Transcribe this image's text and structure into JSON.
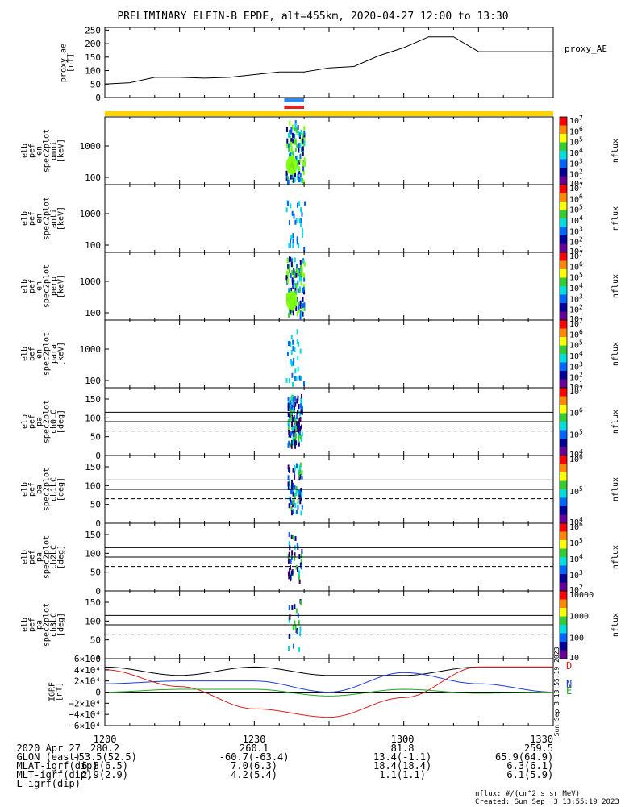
{
  "title": "PRELIMINARY ELFIN-B EPDE, alt=455km, 2020-04-27 12:00 to 13:30",
  "colors": {
    "ae_line": "#000000",
    "bar_blue": "#2f86e6",
    "bar_red": "#e8201e",
    "bar_yellow": "#ffd400",
    "igrf_black": "#000000",
    "igrf_blue": "#1f3cd6",
    "igrf_red": "#d82020",
    "igrf_green": "#1ea81e"
  },
  "ae_panel": {
    "ylabel": "proxy_ae\n[nT]",
    "yticks": [
      "250",
      "200",
      "150",
      "100",
      "50",
      "0"
    ],
    "legend": "proxy_AE"
  },
  "spec_panels": [
    {
      "ylabel": [
        "elb",
        "pef",
        "en",
        "spec2plot",
        "omni",
        "[keV]"
      ],
      "yticks": [
        "1000",
        "100"
      ],
      "cbar_ticks": [
        "10^7",
        "10^6",
        "10^5",
        "10^4",
        "10^3",
        "10^2",
        "10^1"
      ],
      "cbar_label": "nflux"
    },
    {
      "ylabel": [
        "elb",
        "pef",
        "en",
        "spec2plot",
        "anti",
        "[keV]"
      ],
      "yticks": [
        "1000",
        "100"
      ],
      "cbar_ticks": [
        "10^7",
        "10^6",
        "10^5",
        "10^4",
        "10^3",
        "10^2",
        "10^1"
      ],
      "cbar_label": "nflux"
    },
    {
      "ylabel": [
        "elb",
        "pef",
        "en",
        "spec2plot",
        "perp",
        "[keV]"
      ],
      "yticks": [
        "1000",
        "100"
      ],
      "cbar_ticks": [
        "10^7",
        "10^6",
        "10^5",
        "10^4",
        "10^3",
        "10^2",
        "10^1"
      ],
      "cbar_label": "nflux"
    },
    {
      "ylabel": [
        "elb",
        "pef",
        "en",
        "spec2plot",
        "para",
        "[keV]"
      ],
      "yticks": [
        "1000",
        "100"
      ],
      "cbar_ticks": [
        "10^7",
        "10^6",
        "10^5",
        "10^4",
        "10^3",
        "10^2",
        "10^1"
      ],
      "cbar_label": "nflux"
    }
  ],
  "pa_panels": [
    {
      "ylabel": [
        "elb",
        "pef",
        "pa",
        "spec2plot",
        "ch0LC",
        "[deg]"
      ],
      "yticks": [
        "150",
        "100",
        "50",
        "0"
      ],
      "cbar_ticks": [
        "10^7",
        "10^6",
        "10^5",
        "10^4"
      ],
      "cbar_label": "nflux"
    },
    {
      "ylabel": [
        "elb",
        "pef",
        "pa",
        "spec2plot",
        "ch1LC",
        "[deg]"
      ],
      "yticks": [
        "150",
        "100",
        "50",
        "0"
      ],
      "cbar_ticks": [
        "10^6",
        "10^5",
        "10^4"
      ],
      "cbar_label": "nflux"
    },
    {
      "ylabel": [
        "elb",
        "pef",
        "pa",
        "spec2plot",
        "ch2LC",
        "[deg]"
      ],
      "yticks": [
        "150",
        "100",
        "50",
        "0"
      ],
      "cbar_ticks": [
        "10^6",
        "10^5",
        "10^4",
        "10^3",
        "10^2"
      ],
      "cbar_label": "nflux"
    },
    {
      "ylabel": [
        "elb",
        "pef",
        "pa",
        "spec2plot",
        "ch3LC",
        "[deg]"
      ],
      "yticks": [
        "150",
        "100",
        "50",
        "0"
      ],
      "cbar_ticks": [
        "10000",
        "1000",
        "100",
        "10"
      ],
      "cbar_label": "nflux"
    }
  ],
  "igrf_panel": {
    "ylabel": [
      "IGRF",
      "[nT]"
    ],
    "yticks": [
      "6×10⁴",
      "4×10⁴",
      "2×10⁴",
      "0",
      "−2×10⁴",
      "−4×10⁴",
      "−6×10⁴"
    ],
    "legend": [
      "D",
      "N",
      "E"
    ],
    "side_stamp": "Sun Sep  3 13:55:19 2023"
  },
  "footer": {
    "rows": [
      {
        "label": "2020 Apr 27",
        "values": [
          "1200",
          "1230",
          "1300",
          "1330"
        ]
      },
      {
        "label": "GLON (east)",
        "values": [
          "280.2",
          "260.1",
          "81.8",
          "259.5"
        ]
      },
      {
        "label": "MLAT-igrf(dip)",
        "values": [
          "-53.5(52.5)",
          "-60.7(-63.4)",
          "13.4(-1.1)",
          "65.9(64.9)"
        ]
      },
      {
        "label": "MLT-igrf(dip)",
        "values": [
          "6.8(6.5)",
          "7.0(6.3)",
          "18.4(18.4)",
          "6.3(6.1)"
        ]
      },
      {
        "label": "L-igrf(dip)",
        "values": [
          "2.9(2.9)",
          "4.2(5.4)",
          "1.1(1.1)",
          "6.1(5.9)"
        ]
      }
    ],
    "units_note": "nflux: #/(cm^2 s sr MeV)",
    "created": "Created: Sun Sep  3 13:55:19 2023"
  },
  "chart_data": {
    "type": "line",
    "title": "PRELIMINARY ELFIN-B EPDE, alt=455km, 2020-04-27 12:00 to 13:30",
    "x_range": [
      "12:00",
      "13:30"
    ],
    "proxy_AE": {
      "x_min": [
        0,
        5,
        10,
        15,
        20,
        25,
        30,
        35,
        40,
        45,
        50,
        55,
        60,
        65,
        70,
        75,
        80,
        85,
        90
      ],
      "values": [
        50,
        55,
        75,
        75,
        72,
        75,
        85,
        95,
        95,
        110,
        115,
        155,
        185,
        225,
        225,
        170,
        170,
        170,
        170
      ],
      "ylim": [
        0,
        260
      ]
    },
    "science_window_min": [
      36,
      40
    ],
    "energy_axis": {
      "scale": "log",
      "ylim_keV": [
        50,
        7000
      ]
    },
    "pitch_angle_axis": {
      "ylim_deg": [
        0,
        180
      ],
      "lines_deg": [
        90,
        115
      ],
      "dashed_deg": 65
    },
    "igrf": {
      "ylim": [
        -60000,
        60000
      ],
      "x_min": [
        0,
        15,
        30,
        45,
        60,
        75,
        90
      ],
      "D": [
        40000,
        10000,
        -30000,
        -45000,
        -10000,
        45000,
        45000
      ],
      "N": [
        15000,
        20000,
        20000,
        0,
        35000,
        15000,
        0
      ],
      "E": [
        0,
        5000,
        5000,
        -7000,
        5000,
        -2000,
        0
      ],
      "total": [
        45000,
        30000,
        45000,
        30000,
        30000,
        45000,
        45000
      ]
    }
  }
}
